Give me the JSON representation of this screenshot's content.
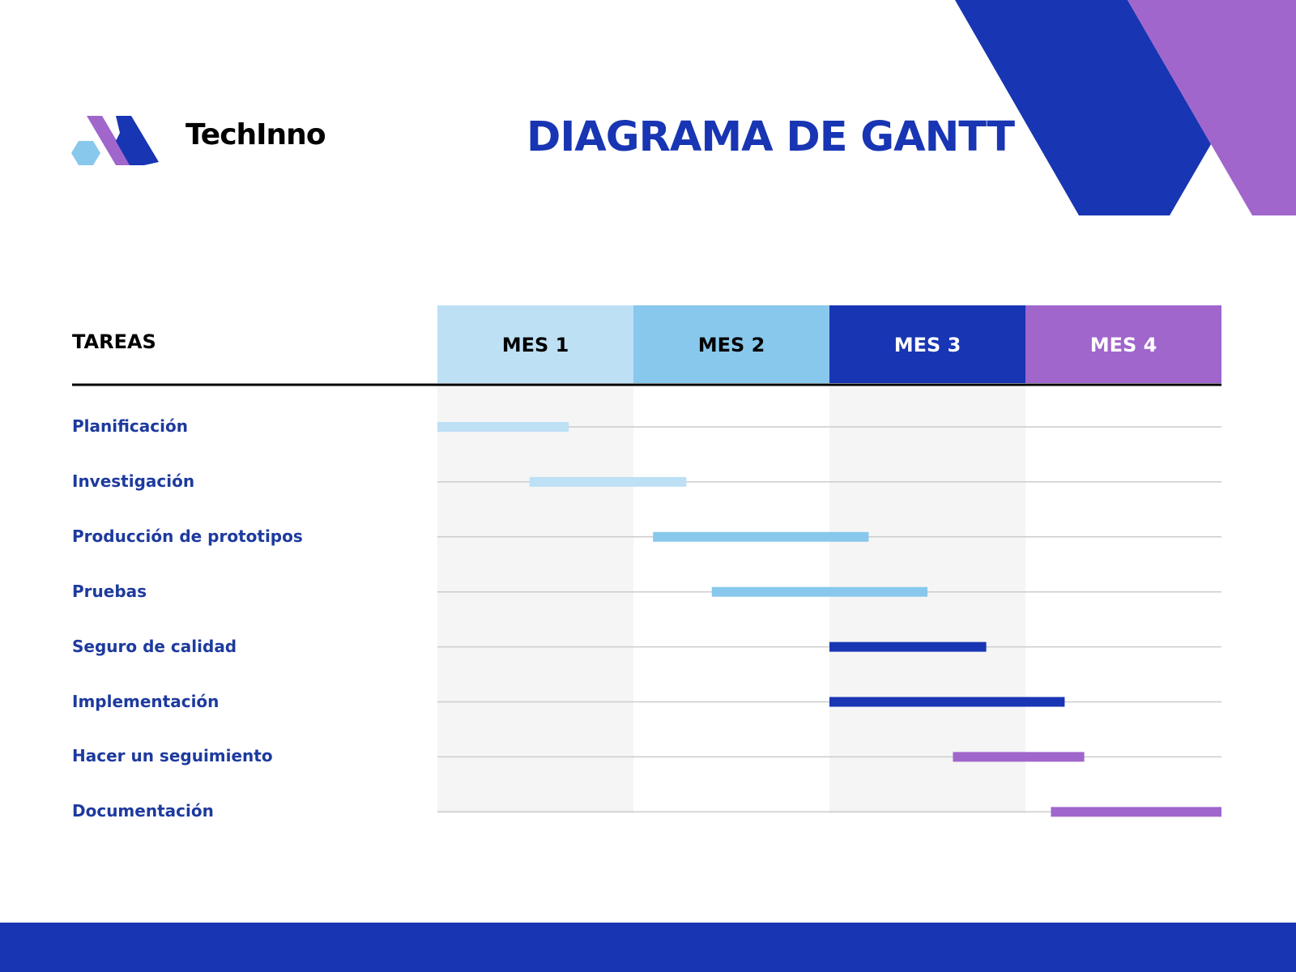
{
  "brand": {
    "name": "TechInno",
    "logo_icon": "hexagon-logo-icon"
  },
  "title": "DIAGRAMA DE GANTT",
  "tasks_header": "TAREAS",
  "colors": {
    "dark_blue": "#1835b3",
    "purple": "#a066cc",
    "light_blue": "#bde0f5",
    "mid_blue": "#88c8ec",
    "label_blue": "#1d3a9e",
    "band_gray": "#f5f5f5",
    "grid_line": "#cccccc"
  },
  "chart_data": {
    "type": "gantt",
    "title": "DIAGRAMA DE GANTT",
    "xlabel": "",
    "ylabel": "TAREAS",
    "x_unit": "mes",
    "xlim": [
      0,
      4
    ],
    "months": [
      {
        "label": "MES 1",
        "color": "#bde0f5",
        "text_color": "#000000"
      },
      {
        "label": "MES 2",
        "color": "#88c8ec",
        "text_color": "#000000"
      },
      {
        "label": "MES 3",
        "color": "#1835b3",
        "text_color": "#ffffff"
      },
      {
        "label": "MES 4",
        "color": "#a066cc",
        "text_color": "#ffffff"
      }
    ],
    "tasks": [
      {
        "name": "Planificación",
        "start": 0.0,
        "end": 0.67,
        "color": "#bde0f5"
      },
      {
        "name": "Investigación",
        "start": 0.47,
        "end": 1.27,
        "color": "#bde0f5"
      },
      {
        "name": "Producción de prototipos",
        "start": 1.1,
        "end": 2.2,
        "color": "#88c8ec"
      },
      {
        "name": "Pruebas",
        "start": 1.4,
        "end": 2.5,
        "color": "#88c8ec"
      },
      {
        "name": "Seguro de calidad",
        "start": 2.0,
        "end": 2.8,
        "color": "#1835b3"
      },
      {
        "name": "Implementación",
        "start": 2.0,
        "end": 3.2,
        "color": "#1835b3"
      },
      {
        "name": "Hacer un seguimiento",
        "start": 2.63,
        "end": 3.3,
        "color": "#a066cc"
      },
      {
        "name": "Documentación",
        "start": 3.13,
        "end": 4.0,
        "color": "#a066cc"
      }
    ],
    "alternating_bands": true,
    "grid": true
  }
}
